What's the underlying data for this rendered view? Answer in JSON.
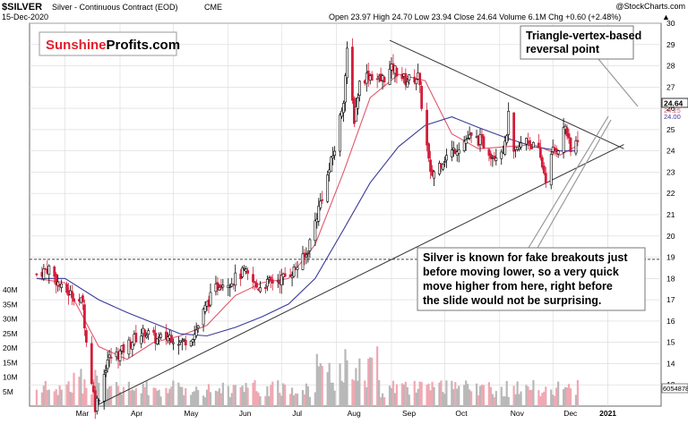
{
  "header": {
    "symbol": "$SILVER",
    "name": "Silver - Continuous Contract (EOD)",
    "exchange": "CME",
    "date": "15-Dec-2020",
    "watermark": "@StockCharts.com",
    "ohlc_text": "Open 23.97  High 24.70  Low 23.94  Close 24.64  Volume 6.1M  Chg +0.60 (+2.48%)",
    "arrow_symbol": "▲"
  },
  "logo": {
    "part1": "Sunshine",
    "part2": "Profits.com",
    "color1": "#e31e2b",
    "color2": "#000000"
  },
  "annotations": {
    "top_lines": [
      "Triangle-vertex-based",
      "reversal point"
    ],
    "bottom_lines": [
      "Silver is known for fake breakouts just",
      "before moving lower, so a very quick",
      "move higher from here, right before",
      "the slide would not be surprising."
    ]
  },
  "price_labels": {
    "last": "24.64",
    "ma_fast": "24.25",
    "ma_slow": "24.00",
    "volume_tag": "6054878"
  },
  "colors": {
    "up": "#000000",
    "down": "#d21d3a",
    "ma_fast": "#e0586c",
    "ma_slow": "#3a3a9a",
    "volume": "#b3b3b3",
    "grid": "#d8d8d8"
  },
  "chart_data": {
    "type": "line",
    "title": "$SILVER Silver - Continuous Contract (EOD) CME",
    "x_ticks": [
      "Mar",
      "Apr",
      "May",
      "Jun",
      "Jul",
      "Aug",
      "Sep",
      "Oct",
      "Nov",
      "Dec",
      "2021"
    ],
    "price_axis": [
      12,
      30
    ],
    "price_ticks": [
      13,
      14,
      15,
      16,
      17,
      18,
      19,
      20,
      21,
      22,
      23,
      24,
      25,
      26,
      27,
      28,
      29,
      30
    ],
    "volume_axis": [
      0,
      40
    ],
    "volume_ticks": [
      "5M",
      "10M",
      "15M",
      "20M",
      "25M",
      "30M",
      "35M",
      "40M"
    ],
    "series": [
      {
        "name": "close",
        "dates": [
          "2020-02-14",
          "2020-02-21",
          "2020-02-28",
          "2020-03-06",
          "2020-03-11",
          "2020-03-13",
          "2020-03-16",
          "2020-03-18",
          "2020-03-20",
          "2020-03-25",
          "2020-04-01",
          "2020-04-08",
          "2020-04-15",
          "2020-04-22",
          "2020-04-29",
          "2020-05-06",
          "2020-05-13",
          "2020-05-20",
          "2020-05-27",
          "2020-06-03",
          "2020-06-10",
          "2020-06-17",
          "2020-06-24",
          "2020-07-01",
          "2020-07-08",
          "2020-07-15",
          "2020-07-22",
          "2020-07-27",
          "2020-07-31",
          "2020-08-05",
          "2020-08-07",
          "2020-08-11",
          "2020-08-14",
          "2020-08-19",
          "2020-08-26",
          "2020-09-02",
          "2020-09-09",
          "2020-09-16",
          "2020-09-21",
          "2020-09-23",
          "2020-09-30",
          "2020-10-07",
          "2020-10-14",
          "2020-10-21",
          "2020-10-28",
          "2020-11-04",
          "2020-11-06",
          "2020-11-09",
          "2020-11-16",
          "2020-11-23",
          "2020-11-27",
          "2020-12-01",
          "2020-12-04",
          "2020-12-08",
          "2020-12-11",
          "2020-12-15"
        ],
        "values": [
          18.2,
          18.5,
          17.5,
          17.2,
          16.8,
          15.0,
          13.2,
          12.0,
          12.5,
          14.2,
          14.5,
          15.1,
          15.5,
          15.1,
          15.3,
          15.0,
          15.4,
          16.8,
          17.8,
          17.9,
          18.3,
          17.6,
          17.8,
          18.0,
          18.4,
          19.1,
          21.3,
          22.8,
          24.1,
          26.5,
          28.6,
          25.5,
          27.2,
          27.6,
          27.3,
          27.9,
          27.3,
          27.5,
          24.2,
          22.8,
          23.6,
          24.1,
          24.6,
          24.5,
          23.8,
          24.2,
          25.6,
          23.8,
          24.6,
          23.9,
          22.7,
          24.0,
          24.2,
          25.2,
          23.9,
          24.64
        ]
      },
      {
        "name": "MA fast",
        "dates": [
          "2020-02-14",
          "2020-03-01",
          "2020-03-20",
          "2020-04-05",
          "2020-04-20",
          "2020-05-05",
          "2020-05-20",
          "2020-06-05",
          "2020-06-20",
          "2020-07-05",
          "2020-07-20",
          "2020-08-05",
          "2020-08-20",
          "2020-09-05",
          "2020-09-20",
          "2020-10-05",
          "2020-10-20",
          "2020-11-05",
          "2020-11-20",
          "2020-12-05",
          "2020-12-15"
        ],
        "values": [
          18.0,
          17.8,
          14.8,
          14.2,
          15.0,
          15.3,
          15.8,
          17.2,
          17.8,
          18.0,
          19.6,
          23.0,
          26.5,
          27.6,
          27.3,
          24.8,
          24.1,
          24.2,
          24.3,
          23.8,
          24.25
        ]
      },
      {
        "name": "MA slow",
        "dates": [
          "2020-02-14",
          "2020-03-01",
          "2020-03-20",
          "2020-04-05",
          "2020-04-20",
          "2020-05-05",
          "2020-05-20",
          "2020-06-05",
          "2020-06-20",
          "2020-07-05",
          "2020-07-20",
          "2020-08-05",
          "2020-08-20",
          "2020-09-05",
          "2020-09-20",
          "2020-10-05",
          "2020-10-20",
          "2020-11-05",
          "2020-11-20",
          "2020-12-05",
          "2020-12-15"
        ],
        "values": [
          18.0,
          18.0,
          17.0,
          16.4,
          15.9,
          15.4,
          15.3,
          15.7,
          16.2,
          16.8,
          18.0,
          20.3,
          22.5,
          24.2,
          25.2,
          25.6,
          25.1,
          24.6,
          24.2,
          24.0,
          24.0
        ]
      }
    ],
    "trendlines": [
      {
        "name": "upper",
        "from": [
          "2020-08-31",
          29.2
        ],
        "to": [
          "2021-01-10",
          24.1
        ]
      },
      {
        "name": "lower",
        "from": [
          "2020-03-18",
          12.0
        ],
        "to": [
          "2021-01-10",
          24.3
        ]
      },
      {
        "name": "support-dashed",
        "from": [
          "2020-02-10",
          18.9
        ],
        "to": [
          "2021-01-31",
          18.9
        ]
      }
    ]
  }
}
